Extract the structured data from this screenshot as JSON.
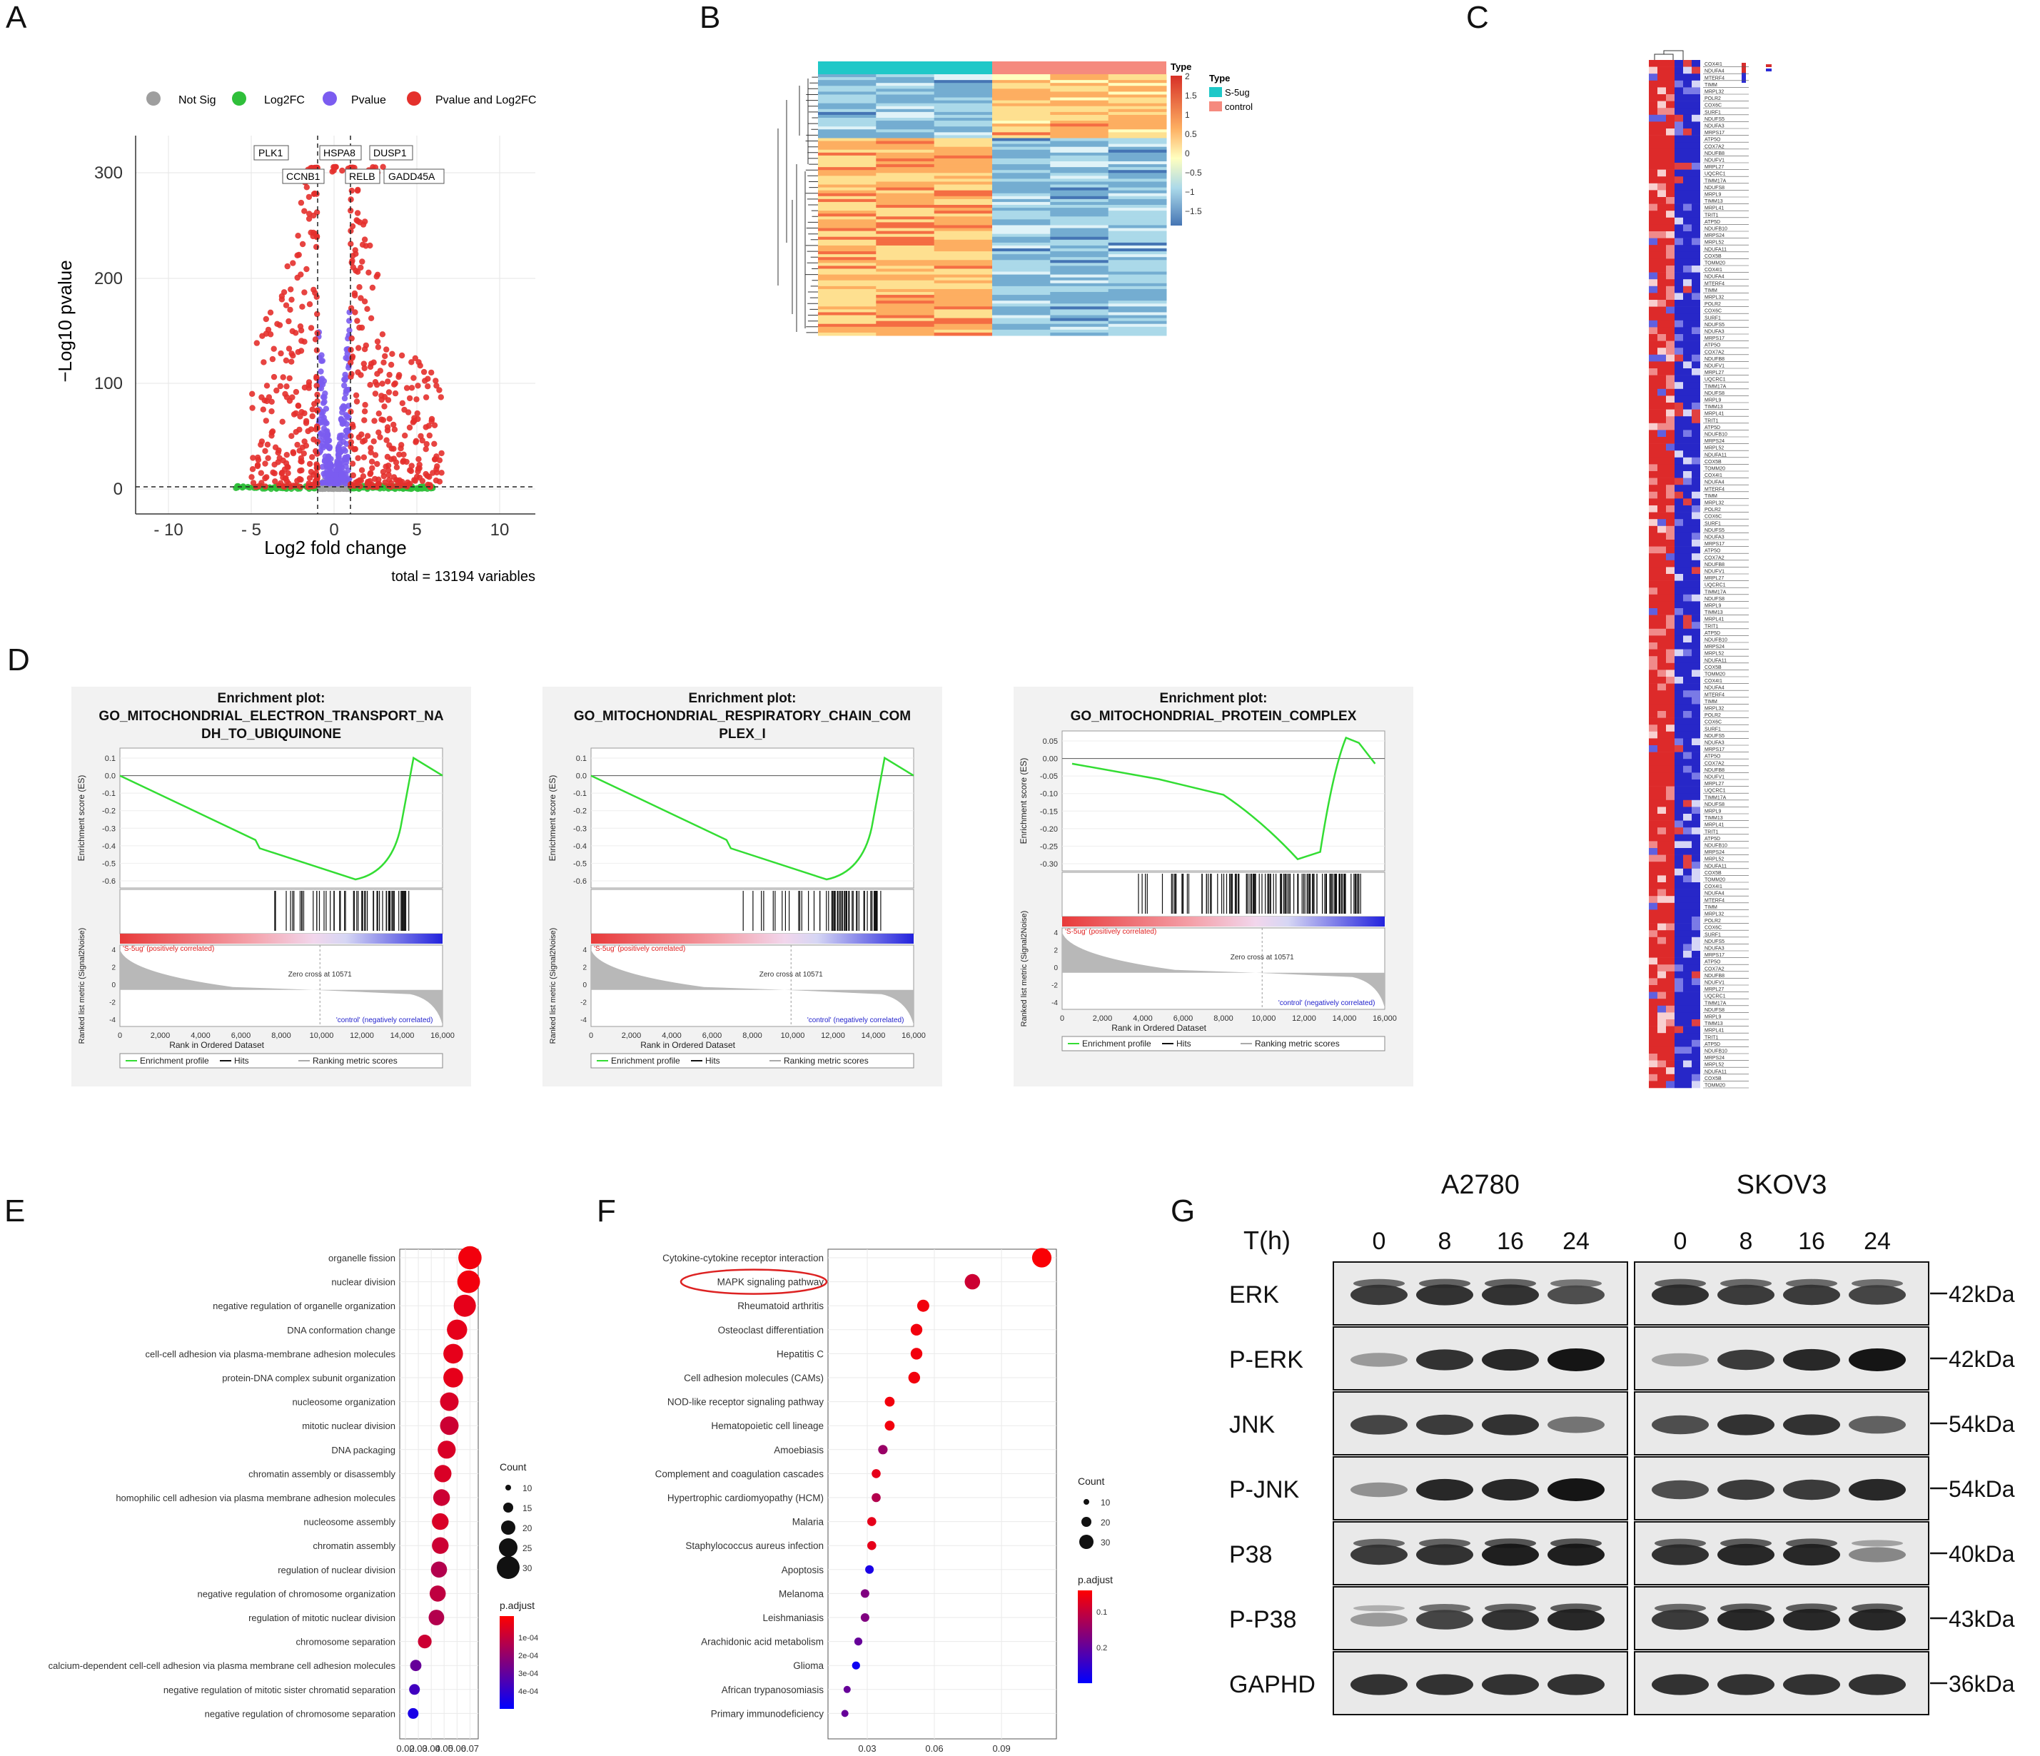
{
  "figure": {
    "panel_labels": [
      "A",
      "B",
      "C",
      "D",
      "E",
      "F",
      "G"
    ]
  },
  "volcano": {
    "legend": [
      "Not Sig",
      "Log2FC",
      "Pvalue",
      "Pvalue and Log2FC"
    ],
    "colors": {
      "not_sig": "#9e9e9e",
      "log2fc": "#2fbf3a",
      "pvalue": "#7b5cf0",
      "both": "#e4302c"
    },
    "gene_labels_top": [
      "PLK1",
      "HSPA8",
      "DUSP1"
    ],
    "gene_labels_bottom": [
      "CCNB1",
      "RELB",
      "GADD45A"
    ],
    "ylabel": "−Log10 pvalue",
    "xlabel": "Log2 fold change",
    "caption": "total = 13194 variables",
    "xticks": [
      "- 10",
      "- 5",
      "0",
      "5",
      "10"
    ],
    "yticks": [
      "0",
      "100",
      "200",
      "300"
    ]
  },
  "heatmap_b": {
    "legend_title": "Type",
    "groups": [
      "S-5ug",
      "control"
    ],
    "group_colors": [
      "#1fc8c8",
      "#f58a7e"
    ],
    "scale_ticks": [
      "2",
      "1.5",
      "1",
      "0.5",
      "0",
      "−0.5",
      "−1",
      "−1.5"
    ]
  },
  "heatmap_c": {
    "genes": [
      "COX4I1",
      "NDUFA4",
      "MTERF4",
      "TIMM",
      "MRPL32",
      "POLR2",
      "COX6C",
      "SURF1",
      "NDUFS5",
      "NDUFA3",
      "MRPS17",
      "ATP5O",
      "COX7A2",
      "NDUFB8",
      "NDUFV1",
      "MRPL27",
      "UQCRC1",
      "TIMM17A",
      "NDUFS8",
      "MRPL9",
      "TIMM13",
      "MRPL41",
      "TRIT1",
      "ATP5D",
      "NDUFB10",
      "MRPS24",
      "MRPL52",
      "NDUFA11",
      "COX5B",
      "TOMM20"
    ]
  },
  "gsea": {
    "plots": [
      {
        "title_lines": [
          "Enrichment plot:",
          "GO_MITOCHONDRIAL_ELECTRON_TRANSPORT_NA",
          "DH_TO_UBIQUINONE"
        ],
        "yticks": [
          "0.1",
          "0.0",
          "-0.1",
          "-0.2",
          "-0.3",
          "-0.4",
          "-0.5",
          "-0.6"
        ]
      },
      {
        "title_lines": [
          "Enrichment plot:",
          "GO_MITOCHONDRIAL_RESPIRATORY_CHAIN_COM",
          "PLEX_I"
        ],
        "yticks": [
          "0.1",
          "0.0",
          "-0.1",
          "-0.2",
          "-0.3",
          "-0.4",
          "-0.5",
          "-0.6"
        ]
      },
      {
        "title_lines": [
          "Enrichment plot:",
          "GO_MITOCHONDRIAL_PROTEIN_COMPLEX"
        ],
        "yticks": [
          "0.05",
          "0.00",
          "-0.05",
          "-0.10",
          "-0.15",
          "-0.20",
          "-0.25",
          "-0.30"
        ]
      }
    ],
    "es_label": "Enrichment score (ES)",
    "metric_label": "Ranked list metric (Signal2Noise)",
    "rank_label": "Rank in Ordered Dataset",
    "pos_label": "'S-5ug' (positively correlated)",
    "neg_label": "'control' (negatively correlated)",
    "zero_cross": "Zero cross at 10571",
    "xticks": [
      "0",
      "2,000",
      "4,000",
      "6,000",
      "8,000",
      "10,000",
      "12,000",
      "14,000",
      "16,000"
    ],
    "metric_ticks": [
      "4",
      "2",
      "0",
      "-2",
      "-4"
    ],
    "legend": [
      "Enrichment profile",
      "Hits",
      "Ranking metric scores"
    ]
  },
  "dot_e": {
    "terms": [
      "organelle fission",
      "nuclear division",
      "negative regulation of organelle organization",
      "DNA conformation change",
      "cell-cell adhesion via plasma-membrane adhesion molecules",
      "protein-DNA complex subunit organization",
      "nucleosome organization",
      "mitotic nuclear division",
      "DNA packaging",
      "chromatin assembly or disassembly",
      "homophilic cell adhesion via plasma membrane adhesion molecules",
      "nucleosome assembly",
      "chromatin assembly",
      "regulation of nuclear division",
      "negative regulation of chromosome organization",
      "regulation of mitotic nuclear division",
      "chromosome separation",
      "calcium-dependent cell-cell adhesion via plasma membrane cell adhesion molecules",
      "negative regulation of mitotic sister chromatid separation",
      "negative regulation of chromosome separation"
    ],
    "gene_ratio": [
      0.07,
      0.069,
      0.066,
      0.06,
      0.057,
      0.057,
      0.054,
      0.054,
      0.052,
      0.049,
      0.048,
      0.047,
      0.047,
      0.046,
      0.045,
      0.044,
      0.035,
      0.028,
      0.027,
      0.026
    ],
    "count": [
      33,
      32,
      31,
      28,
      27,
      27,
      25,
      25,
      24,
      23,
      22,
      22,
      22,
      21,
      21,
      20,
      17,
      13,
      12,
      12
    ],
    "padj_frac": [
      0.05,
      0.05,
      0.1,
      0.1,
      0.1,
      0.1,
      0.15,
      0.2,
      0.15,
      0.15,
      0.2,
      0.15,
      0.2,
      0.3,
      0.25,
      0.3,
      0.2,
      0.6,
      0.75,
      0.9
    ],
    "xlabel": "GeneRatio",
    "xticks": [
      "0.02",
      "0.03",
      "0.04",
      "0.05",
      "0.06",
      "0.07"
    ],
    "count_title": "Count",
    "count_ticks": [
      "10",
      "15",
      "20",
      "25",
      "30"
    ],
    "padj_title": "p.adjust",
    "padj_ticks": [
      "1e-04",
      "2e-04",
      "3e-04",
      "4e-04"
    ]
  },
  "dot_f": {
    "terms": [
      "Cytokine-cytokine receptor interaction",
      "MAPK signaling pathway",
      "Rheumatoid arthritis",
      "Osteoclast differentiation",
      "Hepatitis C",
      "Cell adhesion molecules (CAMs)",
      "NOD-like receptor signaling pathway",
      "Hematopoietic cell lineage",
      "Amoebiasis",
      "Complement and coagulation cascades",
      "Hypertrophic cardiomyopathy (HCM)",
      "Malaria",
      "Staphylococcus aureus infection",
      "Apoptosis",
      "Melanoma",
      "Leishmaniasis",
      "Arachidonic acid metabolism",
      "Glioma",
      "African trypanosomiasis",
      "Primary immunodeficiency"
    ],
    "gene_ratio": [
      0.108,
      0.077,
      0.055,
      0.052,
      0.052,
      0.051,
      0.04,
      0.04,
      0.037,
      0.034,
      0.034,
      0.032,
      0.032,
      0.031,
      0.029,
      0.029,
      0.026,
      0.025,
      0.021,
      0.02
    ],
    "count": [
      33,
      24,
      17,
      16,
      16,
      16,
      12,
      12,
      11,
      10,
      10,
      10,
      10,
      9,
      9,
      9,
      8,
      8,
      6,
      6
    ],
    "padj_frac": [
      0.02,
      0.2,
      0.05,
      0.05,
      0.05,
      0.05,
      0.05,
      0.05,
      0.4,
      0.1,
      0.3,
      0.1,
      0.1,
      0.9,
      0.5,
      0.5,
      0.6,
      0.95,
      0.6,
      0.6
    ],
    "xlabel": "GeneRatio",
    "xticks": [
      "0.03",
      "0.06",
      "0.09"
    ],
    "count_title": "Count",
    "count_ticks": [
      "10",
      "20",
      "30"
    ],
    "padj_title": "p.adjust",
    "padj_ticks": [
      "0.1",
      "0.2"
    ]
  },
  "western": {
    "cell_lines": [
      "A2780",
      "SKOV3"
    ],
    "time_label": "T(h)",
    "timepoints": [
      "0",
      "8",
      "16",
      "24"
    ],
    "proteins": [
      "ERK",
      "P-ERK",
      "JNK",
      "P-JNK",
      "P38",
      "P-P38",
      "GAPHD"
    ],
    "sizes": [
      "42kDa",
      "42kDa",
      "54kDa",
      "54kDa",
      "40kDa",
      "43kDa",
      "36kDa"
    ],
    "band_intensity": {
      "A2780": [
        [
          0.8,
          0.85,
          0.85,
          0.7
        ],
        [
          0.3,
          0.85,
          0.9,
          1.0
        ],
        [
          0.75,
          0.8,
          0.85,
          0.5
        ],
        [
          0.35,
          0.9,
          0.9,
          1.0
        ],
        [
          0.8,
          0.85,
          0.95,
          0.95
        ],
        [
          0.3,
          0.75,
          0.85,
          0.9
        ],
        [
          0.85,
          0.85,
          0.85,
          0.85
        ]
      ],
      "SKOV3": [
        [
          0.85,
          0.8,
          0.8,
          0.75
        ],
        [
          0.25,
          0.8,
          0.9,
          1.0
        ],
        [
          0.7,
          0.85,
          0.85,
          0.6
        ],
        [
          0.7,
          0.8,
          0.8,
          0.9
        ],
        [
          0.85,
          0.9,
          0.9,
          0.4
        ],
        [
          0.8,
          0.9,
          0.9,
          0.9
        ],
        [
          0.85,
          0.85,
          0.85,
          0.85
        ]
      ]
    }
  }
}
